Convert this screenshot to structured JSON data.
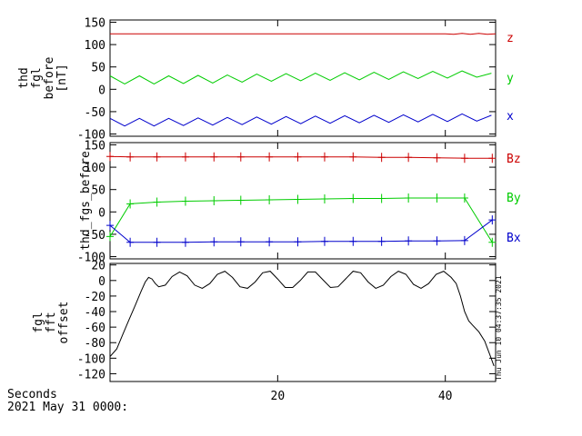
{
  "chart_data": [
    {
      "type": "line",
      "ylabel_lines": [
        "thd",
        "fgl",
        "before",
        "[nT]"
      ],
      "ylim": [
        -105,
        155
      ],
      "yticks": [
        -100,
        -50,
        0,
        50,
        100,
        150
      ],
      "xlim": [
        0,
        46
      ],
      "series": [
        {
          "name": "z",
          "color": "#cc0000",
          "x": [
            0,
            40,
            41,
            42,
            43,
            44,
            45,
            46
          ],
          "y": [
            124,
            124,
            123,
            125,
            123,
            125,
            123,
            124
          ]
        },
        {
          "name": "y",
          "color": "#00cc00",
          "x": [
            0,
            1.75,
            3.5,
            5.25,
            7,
            8.75,
            10.5,
            12.25,
            14,
            15.75,
            17.5,
            19.25,
            21,
            22.75,
            24.5,
            26.25,
            28,
            29.75,
            31.5,
            33.25,
            35,
            36.75,
            38.5,
            40.25,
            42,
            43.75,
            45.5
          ],
          "y": [
            30,
            12,
            30,
            12,
            30,
            13,
            31,
            14,
            32,
            16,
            34,
            18,
            35,
            19,
            36,
            20,
            37,
            21,
            38,
            22,
            39,
            24,
            40,
            25,
            41,
            27,
            36
          ]
        },
        {
          "name": "x",
          "color": "#0000cc",
          "x": [
            0,
            1.75,
            3.5,
            5.25,
            7,
            8.75,
            10.5,
            12.25,
            14,
            15.75,
            17.5,
            19.25,
            21,
            22.75,
            24.5,
            26.25,
            28,
            29.75,
            31.5,
            33.25,
            35,
            36.75,
            38.5,
            40.25,
            42,
            43.75,
            45.5
          ],
          "y": [
            -65,
            -82,
            -65,
            -82,
            -65,
            -81,
            -64,
            -80,
            -63,
            -79,
            -62,
            -78,
            -61,
            -77,
            -60,
            -76,
            -59,
            -75,
            -58,
            -74,
            -57,
            -73,
            -56,
            -72,
            -55,
            -71,
            -58
          ]
        }
      ]
    },
    {
      "type": "line",
      "ylabel_lines": [
        "thd_fgs_before"
      ],
      "ylim": [
        -105,
        155
      ],
      "yticks": [
        -100,
        -50,
        0,
        50,
        100,
        150
      ],
      "xlim": [
        0,
        46
      ],
      "marker": "+",
      "series": [
        {
          "name": "Bz",
          "color": "#cc0000",
          "x": [
            0,
            2.4,
            5.6,
            9,
            12.4,
            15.6,
            19,
            22.4,
            25.6,
            29,
            32.4,
            35.6,
            39,
            42.3,
            45.6
          ],
          "y": [
            124,
            123,
            123,
            123,
            123,
            123,
            123,
            123,
            123,
            123,
            122,
            122,
            121,
            120,
            120
          ]
        },
        {
          "name": "By",
          "color": "#00cc00",
          "x": [
            0,
            2.4,
            5.6,
            9,
            12.4,
            15.6,
            19,
            22.4,
            25.6,
            29,
            32.4,
            35.6,
            39,
            42.3,
            45.6
          ],
          "y": [
            -55,
            18,
            22,
            24,
            25,
            26,
            27,
            28,
            29,
            30,
            30,
            31,
            31,
            31,
            -68
          ]
        },
        {
          "name": "Bx",
          "color": "#0000cc",
          "x": [
            0,
            2.4,
            5.6,
            9,
            12.4,
            15.6,
            19,
            22.4,
            25.6,
            29,
            32.4,
            35.6,
            39,
            42.3,
            45.6
          ],
          "y": [
            -30,
            -68,
            -68,
            -68,
            -67,
            -67,
            -67,
            -67,
            -66,
            -66,
            -66,
            -65,
            -65,
            -64,
            -18
          ]
        }
      ]
    },
    {
      "type": "line",
      "ylabel_lines": [
        "fgl",
        "fft",
        "offset"
      ],
      "ylim": [
        -130,
        22
      ],
      "yticks": [
        -120,
        -100,
        -80,
        -60,
        -40,
        -20,
        0,
        20
      ],
      "xlim": [
        0,
        46
      ],
      "series": [
        {
          "name": "",
          "color": "#000000",
          "x": [
            0,
            0.8,
            1.5,
            2.2,
            3,
            3.7,
            4.2,
            4.6,
            5,
            5.4,
            5.8,
            6.6,
            7.4,
            8.3,
            9.2,
            10.1,
            11,
            11.9,
            12.8,
            13.7,
            14.6,
            15.5,
            16.4,
            17.3,
            18.2,
            19.1,
            20,
            20.9,
            21.8,
            22.7,
            23.6,
            24.5,
            25.4,
            26.3,
            27.2,
            28.1,
            29,
            29.9,
            30.8,
            31.7,
            32.6,
            33.5,
            34.4,
            35.3,
            36.2,
            37.1,
            38,
            38.9,
            39.8,
            40.7,
            41.3,
            41.8,
            42.3,
            42.8,
            43.3,
            44,
            44.7,
            45.3,
            45.8
          ],
          "y": [
            -98,
            -88,
            -70,
            -52,
            -32,
            -14,
            -2,
            4,
            2,
            -4,
            -8,
            -6,
            5,
            11,
            6,
            -6,
            -10,
            -4,
            8,
            12,
            4,
            -8,
            -10,
            -2,
            10,
            12,
            2,
            -9,
            -9,
            0,
            11,
            11,
            1,
            -9,
            -8,
            2,
            12,
            10,
            -2,
            -10,
            -6,
            5,
            12,
            8,
            -5,
            -10,
            -4,
            8,
            12,
            4,
            -4,
            -20,
            -40,
            -52,
            -58,
            -66,
            -78,
            -95,
            -110
          ]
        }
      ],
      "xticks": [
        20,
        40
      ]
    }
  ],
  "axis": {
    "x_title": "Seconds",
    "x_start": "2021 May 31 0000:"
  },
  "timestamp": "Thu Jun 10 04:37:35 2021"
}
